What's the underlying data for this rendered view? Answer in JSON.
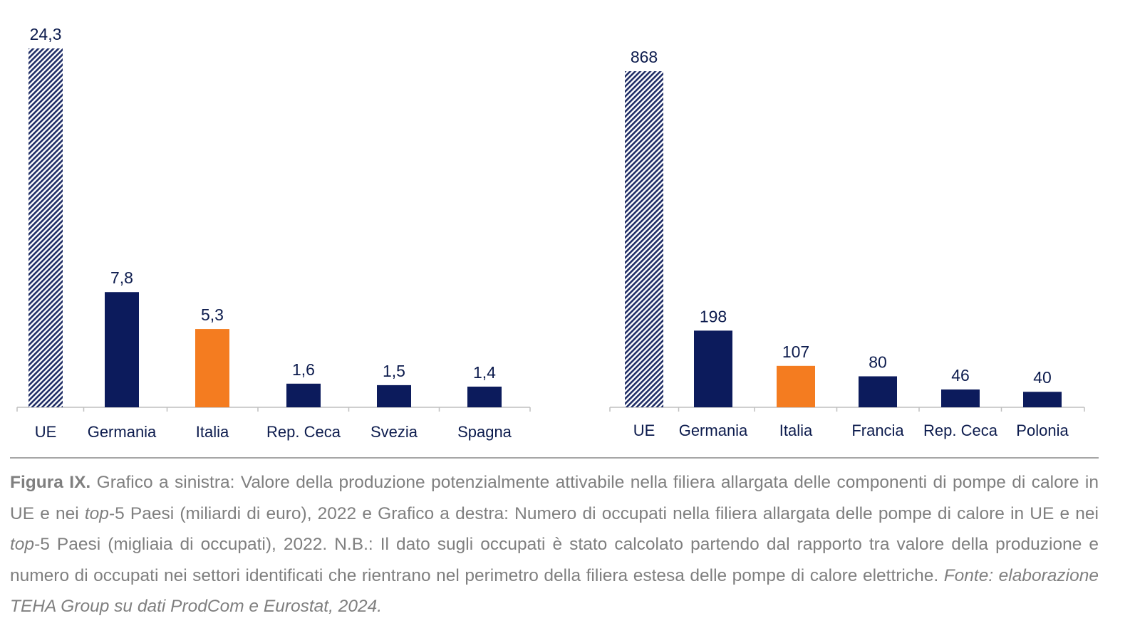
{
  "chart_data": [
    {
      "type": "bar",
      "categories": [
        "UE",
        "Germania",
        "Italia",
        "Rep. Ceca",
        "Svezia",
        "Spagna"
      ],
      "values": [
        24.3,
        7.8,
        5.3,
        1.6,
        1.5,
        1.4
      ],
      "value_labels": [
        "24,3",
        "7,8",
        "5,3",
        "1,6",
        "1,5",
        "1,4"
      ],
      "bar_styles": [
        "hatched",
        "solid",
        "highlight",
        "solid",
        "solid",
        "solid"
      ],
      "ylim": [
        0,
        24.3
      ],
      "grid": false,
      "legend": "none"
    },
    {
      "type": "bar",
      "categories": [
        "UE",
        "Germania",
        "Italia",
        "Francia",
        "Rep. Ceca",
        "Polonia"
      ],
      "values": [
        868,
        198,
        107,
        80,
        46,
        40
      ],
      "value_labels": [
        "868",
        "198",
        "107",
        "80",
        "46",
        "40"
      ],
      "bar_styles": [
        "hatched",
        "solid",
        "highlight",
        "solid",
        "solid",
        "solid"
      ],
      "ylim": [
        0,
        868
      ],
      "grid": false,
      "legend": "none"
    }
  ],
  "colors": {
    "bar": "#0c1b5c",
    "highlight": "#f47c20",
    "hatch_stripe": "#1f2d66",
    "text": "#0c1b4d",
    "caption": "#7f7f7f",
    "axis": "#bfbfbf"
  },
  "caption": {
    "bold_label": "Figura IX.",
    "part1": " Grafico a sinistra: Valore della produzione potenzialmente attivabile nella filiera allargata delle componenti di pompe di calore in UE e nei ",
    "italic1": "top",
    "part2": "-5 Paesi (miliardi di euro), 2022 e Grafico a destra: Numero di occupati nella filiera allargata delle pompe di calore in UE e nei ",
    "italic2": "top",
    "part3": "-5 Paesi (migliaia di occupati), 2022. N.B.: Il dato sugli occupati è stato calcolato partendo dal rapporto tra valore della produzione e numero di occupati nei settori identificati che rientrano nel perimetro della filiera estesa delle pompe di calore elettriche. ",
    "source": "Fonte: elaborazione TEHA Group su dati ProdCom e Eurostat, 2024."
  }
}
